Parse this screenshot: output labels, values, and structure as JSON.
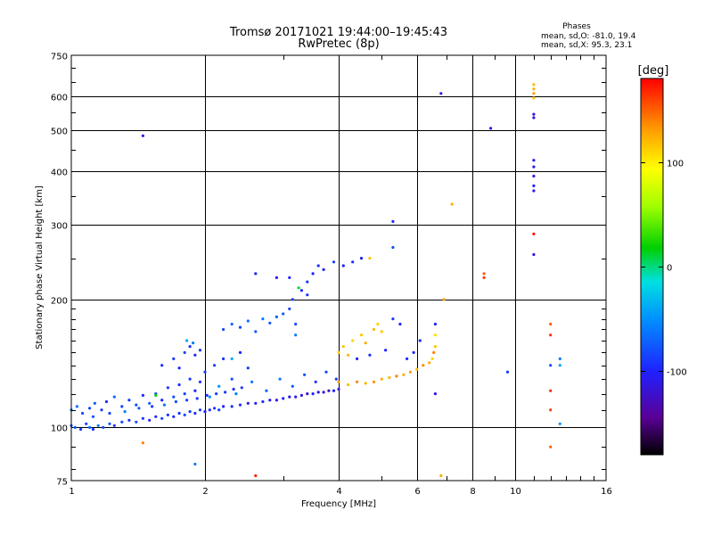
{
  "chart_data": {
    "type": "scatter",
    "title": "Tromsø 20171021 19:44:00–19:45:43",
    "subtitle": "RwPretec (8p)",
    "xlabel": "Frequency [MHz]",
    "ylabel": "Stationary phase Virtual Height [km]",
    "x_scale": "log",
    "y_scale": "log",
    "xlim": [
      1,
      16
    ],
    "ylim": [
      75,
      750
    ],
    "x_ticks": [
      1,
      2,
      4,
      6,
      8,
      10,
      16
    ],
    "y_ticks": [
      75,
      100,
      200,
      300,
      400,
      500,
      600,
      750
    ],
    "grid": true,
    "legend_block": {
      "heading": "Phases",
      "line1": "mean, sd,O: -81.0, 19.4",
      "line2": "mean, sd,X:  95.3, 23.1"
    },
    "colorbar": {
      "label": "[deg]",
      "min": -180,
      "max": 180,
      "ticks": [
        100,
        0,
        -100
      ],
      "tick_labels": [
        "100",
        "0",
        "-100"
      ]
    },
    "points": [
      {
        "x": 1.0,
        "y": 101,
        "phase": -80
      },
      {
        "x": 1.02,
        "y": 100,
        "phase": -75
      },
      {
        "x": 1.05,
        "y": 99,
        "phase": -90
      },
      {
        "x": 1.08,
        "y": 102,
        "phase": -85
      },
      {
        "x": 1.1,
        "y": 100,
        "phase": -70
      },
      {
        "x": 1.12,
        "y": 99,
        "phase": -95
      },
      {
        "x": 1.15,
        "y": 101,
        "phase": -60
      },
      {
        "x": 1.18,
        "y": 100,
        "phase": -80
      },
      {
        "x": 1.22,
        "y": 102,
        "phase": -75
      },
      {
        "x": 1.25,
        "y": 101,
        "phase": -90
      },
      {
        "x": 1.0,
        "y": 110,
        "phase": -60
      },
      {
        "x": 1.03,
        "y": 112,
        "phase": -65
      },
      {
        "x": 1.06,
        "y": 108,
        "phase": -80
      },
      {
        "x": 1.1,
        "y": 111,
        "phase": -85
      },
      {
        "x": 1.13,
        "y": 114,
        "phase": -75
      },
      {
        "x": 1.17,
        "y": 110,
        "phase": -90
      },
      {
        "x": 1.2,
        "y": 115,
        "phase": -95
      },
      {
        "x": 1.25,
        "y": 118,
        "phase": -70
      },
      {
        "x": 1.3,
        "y": 112,
        "phase": -85
      },
      {
        "x": 1.35,
        "y": 116,
        "phase": -90
      },
      {
        "x": 1.4,
        "y": 113,
        "phase": -80
      },
      {
        "x": 1.45,
        "y": 119,
        "phase": -95
      },
      {
        "x": 1.5,
        "y": 114,
        "phase": -75
      },
      {
        "x": 1.55,
        "y": 120,
        "phase": -85
      },
      {
        "x": 1.6,
        "y": 116,
        "phase": -100
      },
      {
        "x": 1.65,
        "y": 124,
        "phase": -90
      },
      {
        "x": 1.7,
        "y": 118,
        "phase": -80
      },
      {
        "x": 1.75,
        "y": 126,
        "phase": -95
      },
      {
        "x": 1.8,
        "y": 120,
        "phase": -85
      },
      {
        "x": 1.85,
        "y": 130,
        "phase": -90
      },
      {
        "x": 1.9,
        "y": 122,
        "phase": -100
      },
      {
        "x": 1.95,
        "y": 128,
        "phase": -95
      },
      {
        "x": 1.3,
        "y": 103,
        "phase": -85
      },
      {
        "x": 1.35,
        "y": 104,
        "phase": -95
      },
      {
        "x": 1.4,
        "y": 103,
        "phase": -80
      },
      {
        "x": 1.45,
        "y": 105,
        "phase": -90
      },
      {
        "x": 1.5,
        "y": 104,
        "phase": -100
      },
      {
        "x": 1.55,
        "y": 106,
        "phase": -95
      },
      {
        "x": 1.6,
        "y": 105,
        "phase": -85
      },
      {
        "x": 1.65,
        "y": 107,
        "phase": -90
      },
      {
        "x": 1.7,
        "y": 106,
        "phase": -100
      },
      {
        "x": 1.75,
        "y": 108,
        "phase": -95
      },
      {
        "x": 1.8,
        "y": 107,
        "phase": -80
      },
      {
        "x": 1.85,
        "y": 109,
        "phase": -90
      },
      {
        "x": 1.9,
        "y": 108,
        "phase": -95
      },
      {
        "x": 1.95,
        "y": 110,
        "phase": -85
      },
      {
        "x": 2.0,
        "y": 109,
        "phase": -100
      },
      {
        "x": 2.05,
        "y": 110,
        "phase": -95
      },
      {
        "x": 2.1,
        "y": 111,
        "phase": -90
      },
      {
        "x": 2.15,
        "y": 110,
        "phase": -85
      },
      {
        "x": 2.2,
        "y": 112,
        "phase": -100
      },
      {
        "x": 2.3,
        "y": 112,
        "phase": -95
      },
      {
        "x": 2.4,
        "y": 113,
        "phase": -90
      },
      {
        "x": 2.5,
        "y": 114,
        "phase": -110
      },
      {
        "x": 2.6,
        "y": 114,
        "phase": -100
      },
      {
        "x": 2.7,
        "y": 115,
        "phase": -95
      },
      {
        "x": 2.8,
        "y": 116,
        "phase": -105
      },
      {
        "x": 2.9,
        "y": 116,
        "phase": -110
      },
      {
        "x": 3.0,
        "y": 117,
        "phase": -100
      },
      {
        "x": 3.1,
        "y": 118,
        "phase": -115
      },
      {
        "x": 3.2,
        "y": 118,
        "phase": -105
      },
      {
        "x": 3.3,
        "y": 119,
        "phase": -110
      },
      {
        "x": 3.4,
        "y": 120,
        "phase": -120
      },
      {
        "x": 3.5,
        "y": 120,
        "phase": -100
      },
      {
        "x": 3.6,
        "y": 121,
        "phase": -115
      },
      {
        "x": 3.7,
        "y": 121,
        "phase": -110
      },
      {
        "x": 3.8,
        "y": 122,
        "phase": -120
      },
      {
        "x": 3.9,
        "y": 122,
        "phase": -105
      },
      {
        "x": 4.0,
        "y": 123,
        "phase": -115
      },
      {
        "x": 1.6,
        "y": 140,
        "phase": -95
      },
      {
        "x": 1.7,
        "y": 145,
        "phase": -90
      },
      {
        "x": 1.75,
        "y": 138,
        "phase": -100
      },
      {
        "x": 1.8,
        "y": 150,
        "phase": -85
      },
      {
        "x": 1.85,
        "y": 155,
        "phase": -95
      },
      {
        "x": 1.9,
        "y": 148,
        "phase": -100
      },
      {
        "x": 1.95,
        "y": 152,
        "phase": -90
      },
      {
        "x": 1.82,
        "y": 160,
        "phase": -40
      },
      {
        "x": 1.88,
        "y": 158,
        "phase": -60
      },
      {
        "x": 2.0,
        "y": 135,
        "phase": -90
      },
      {
        "x": 2.1,
        "y": 140,
        "phase": -85
      },
      {
        "x": 2.2,
        "y": 145,
        "phase": -95
      },
      {
        "x": 2.3,
        "y": 130,
        "phase": -80
      },
      {
        "x": 2.4,
        "y": 150,
        "phase": -100
      },
      {
        "x": 2.5,
        "y": 138,
        "phase": -90
      },
      {
        "x": 2.2,
        "y": 170,
        "phase": -80
      },
      {
        "x": 2.3,
        "y": 175,
        "phase": -70
      },
      {
        "x": 2.4,
        "y": 172,
        "phase": -85
      },
      {
        "x": 2.5,
        "y": 178,
        "phase": -65
      },
      {
        "x": 2.6,
        "y": 168,
        "phase": -75
      },
      {
        "x": 2.7,
        "y": 180,
        "phase": -60
      },
      {
        "x": 2.8,
        "y": 176,
        "phase": -80
      },
      {
        "x": 2.9,
        "y": 182,
        "phase": -70
      },
      {
        "x": 3.0,
        "y": 185,
        "phase": -75
      },
      {
        "x": 3.1,
        "y": 190,
        "phase": -85
      },
      {
        "x": 3.15,
        "y": 200,
        "phase": -90
      },
      {
        "x": 3.2,
        "y": 175,
        "phase": -80
      },
      {
        "x": 3.3,
        "y": 210,
        "phase": -95
      },
      {
        "x": 3.4,
        "y": 220,
        "phase": -90
      },
      {
        "x": 3.5,
        "y": 230,
        "phase": -100
      },
      {
        "x": 3.6,
        "y": 240,
        "phase": -95
      },
      {
        "x": 3.7,
        "y": 235,
        "phase": -100
      },
      {
        "x": 3.9,
        "y": 245,
        "phase": -90
      },
      {
        "x": 4.1,
        "y": 240,
        "phase": -100
      },
      {
        "x": 4.3,
        "y": 245,
        "phase": -95
      },
      {
        "x": 4.5,
        "y": 250,
        "phase": -105
      },
      {
        "x": 4.7,
        "y": 250,
        "phase": 115
      },
      {
        "x": 2.6,
        "y": 230,
        "phase": -100
      },
      {
        "x": 2.9,
        "y": 225,
        "phase": -110
      },
      {
        "x": 3.1,
        "y": 225,
        "phase": -100
      },
      {
        "x": 3.25,
        "y": 213,
        "phase": 10
      },
      {
        "x": 3.4,
        "y": 205,
        "phase": -90
      },
      {
        "x": 4.0,
        "y": 150,
        "phase": 110
      },
      {
        "x": 4.1,
        "y": 155,
        "phase": 115
      },
      {
        "x": 4.2,
        "y": 148,
        "phase": 120
      },
      {
        "x": 4.3,
        "y": 160,
        "phase": 110
      },
      {
        "x": 4.5,
        "y": 165,
        "phase": 115
      },
      {
        "x": 4.6,
        "y": 158,
        "phase": 125
      },
      {
        "x": 4.8,
        "y": 170,
        "phase": 120
      },
      {
        "x": 4.9,
        "y": 175,
        "phase": 110
      },
      {
        "x": 5.0,
        "y": 168,
        "phase": 115
      },
      {
        "x": 4.0,
        "y": 128,
        "phase": 130
      },
      {
        "x": 4.2,
        "y": 126,
        "phase": 120
      },
      {
        "x": 4.4,
        "y": 128,
        "phase": 140
      },
      {
        "x": 4.6,
        "y": 127,
        "phase": 120
      },
      {
        "x": 4.8,
        "y": 128,
        "phase": 135
      },
      {
        "x": 5.0,
        "y": 130,
        "phase": 125
      },
      {
        "x": 5.2,
        "y": 131,
        "phase": 120
      },
      {
        "x": 5.4,
        "y": 132,
        "phase": 140
      },
      {
        "x": 5.6,
        "y": 133,
        "phase": 125
      },
      {
        "x": 5.8,
        "y": 135,
        "phase": 130
      },
      {
        "x": 6.0,
        "y": 137,
        "phase": 120
      },
      {
        "x": 6.2,
        "y": 140,
        "phase": 135
      },
      {
        "x": 6.4,
        "y": 142,
        "phase": 125
      },
      {
        "x": 6.5,
        "y": 145,
        "phase": 110
      },
      {
        "x": 6.6,
        "y": 155,
        "phase": 115
      },
      {
        "x": 6.6,
        "y": 165,
        "phase": 105
      },
      {
        "x": 6.55,
        "y": 150,
        "phase": 140
      },
      {
        "x": 5.9,
        "y": 150,
        "phase": -100
      },
      {
        "x": 6.1,
        "y": 160,
        "phase": -95
      },
      {
        "x": 5.5,
        "y": 175,
        "phase": -100
      },
      {
        "x": 5.3,
        "y": 180,
        "phase": -90
      },
      {
        "x": 4.4,
        "y": 145,
        "phase": -100
      },
      {
        "x": 4.7,
        "y": 148,
        "phase": -95
      },
      {
        "x": 5.1,
        "y": 152,
        "phase": -100
      },
      {
        "x": 5.7,
        "y": 145,
        "phase": -95
      },
      {
        "x": 6.6,
        "y": 175,
        "phase": -100
      },
      {
        "x": 5.3,
        "y": 305,
        "phase": -100
      },
      {
        "x": 5.3,
        "y": 265,
        "phase": -80
      },
      {
        "x": 6.8,
        "y": 610,
        "phase": -110
      },
      {
        "x": 7.2,
        "y": 335,
        "phase": 125
      },
      {
        "x": 6.9,
        "y": 200,
        "phase": 130
      },
      {
        "x": 6.6,
        "y": 120,
        "phase": -110
      },
      {
        "x": 6.8,
        "y": 77,
        "phase": 125
      },
      {
        "x": 8.5,
        "y": 230,
        "phase": 150
      },
      {
        "x": 8.5,
        "y": 225,
        "phase": 160
      },
      {
        "x": 8.8,
        "y": 505,
        "phase": -110
      },
      {
        "x": 9.6,
        "y": 135,
        "phase": -90
      },
      {
        "x": 11.0,
        "y": 640,
        "phase": 120
      },
      {
        "x": 11.0,
        "y": 625,
        "phase": 125
      },
      {
        "x": 11.0,
        "y": 610,
        "phase": 130
      },
      {
        "x": 11.0,
        "y": 595,
        "phase": 115
      },
      {
        "x": 11.0,
        "y": 545,
        "phase": -110
      },
      {
        "x": 11.0,
        "y": 535,
        "phase": -115
      },
      {
        "x": 11.0,
        "y": 425,
        "phase": -110
      },
      {
        "x": 11.0,
        "y": 410,
        "phase": -105
      },
      {
        "x": 11.0,
        "y": 390,
        "phase": -110
      },
      {
        "x": 11.0,
        "y": 370,
        "phase": -100
      },
      {
        "x": 11.0,
        "y": 360,
        "phase": -110
      },
      {
        "x": 11.0,
        "y": 285,
        "phase": 175
      },
      {
        "x": 11.0,
        "y": 255,
        "phase": -110
      },
      {
        "x": 12.0,
        "y": 175,
        "phase": 150
      },
      {
        "x": 12.0,
        "y": 165,
        "phase": 165
      },
      {
        "x": 12.0,
        "y": 140,
        "phase": -80
      },
      {
        "x": 12.0,
        "y": 122,
        "phase": 165
      },
      {
        "x": 12.0,
        "y": 110,
        "phase": 160
      },
      {
        "x": 12.0,
        "y": 90,
        "phase": 150
      },
      {
        "x": 12.6,
        "y": 145,
        "phase": -60
      },
      {
        "x": 12.6,
        "y": 140,
        "phase": -40
      },
      {
        "x": 12.6,
        "y": 102,
        "phase": -50
      },
      {
        "x": 1.45,
        "y": 485,
        "phase": -110
      },
      {
        "x": 1.45,
        "y": 92,
        "phase": 140
      },
      {
        "x": 1.9,
        "y": 82,
        "phase": -60
      },
      {
        "x": 2.6,
        "y": 77,
        "phase": 170
      },
      {
        "x": 1.55,
        "y": 119,
        "phase": 20
      },
      {
        "x": 2.3,
        "y": 145,
        "phase": -40
      },
      {
        "x": 3.2,
        "y": 165,
        "phase": -60
      },
      {
        "x": 2.05,
        "y": 118,
        "phase": -55
      },
      {
        "x": 2.15,
        "y": 125,
        "phase": -50
      },
      {
        "x": 2.35,
        "y": 120,
        "phase": -60
      },
      {
        "x": 2.55,
        "y": 128,
        "phase": -65
      },
      {
        "x": 2.75,
        "y": 122,
        "phase": -70
      },
      {
        "x": 2.95,
        "y": 130,
        "phase": -60
      },
      {
        "x": 3.15,
        "y": 125,
        "phase": -75
      },
      {
        "x": 3.35,
        "y": 133,
        "phase": -80
      },
      {
        "x": 3.55,
        "y": 128,
        "phase": -95
      },
      {
        "x": 3.75,
        "y": 135,
        "phase": -85
      },
      {
        "x": 3.95,
        "y": 130,
        "phase": -90
      },
      {
        "x": 1.12,
        "y": 106,
        "phase": -80
      },
      {
        "x": 1.22,
        "y": 108,
        "phase": -85
      },
      {
        "x": 1.32,
        "y": 109,
        "phase": -60
      },
      {
        "x": 1.42,
        "y": 111,
        "phase": -75
      },
      {
        "x": 1.52,
        "y": 112,
        "phase": -90
      },
      {
        "x": 1.62,
        "y": 113,
        "phase": -65
      },
      {
        "x": 1.72,
        "y": 115,
        "phase": -80
      },
      {
        "x": 1.82,
        "y": 116,
        "phase": -85
      },
      {
        "x": 1.92,
        "y": 117,
        "phase": -90
      },
      {
        "x": 2.02,
        "y": 119,
        "phase": -95
      },
      {
        "x": 2.12,
        "y": 120,
        "phase": -85
      },
      {
        "x": 2.22,
        "y": 121,
        "phase": -90
      },
      {
        "x": 2.32,
        "y": 123,
        "phase": -95
      },
      {
        "x": 2.42,
        "y": 124,
        "phase": -90
      }
    ]
  }
}
